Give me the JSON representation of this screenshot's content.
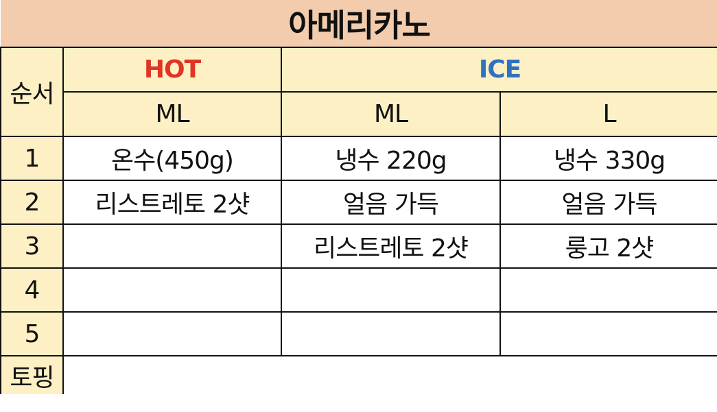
{
  "title": "아메리카노",
  "header": {
    "order_label": "순서",
    "hot_label": "HOT",
    "ice_label": "ICE",
    "hot_size": "ML",
    "ice_size_m": "ML",
    "ice_size_l": "L"
  },
  "rows": [
    {
      "step": "1",
      "hot_ml": "온수(450g)",
      "ice_ml": "냉수 220g",
      "ice_l": "냉수 330g"
    },
    {
      "step": "2",
      "hot_ml": "리스트레토 2샷",
      "ice_ml": "얼음 가득",
      "ice_l": "얼음 가득"
    },
    {
      "step": "3",
      "hot_ml": "",
      "ice_ml": "리스트레토 2샷",
      "ice_l": "룽고 2샷"
    },
    {
      "step": "4",
      "hot_ml": "",
      "ice_ml": "",
      "ice_l": ""
    },
    {
      "step": "5",
      "hot_ml": "",
      "ice_ml": "",
      "ice_l": ""
    }
  ],
  "topping_label": "토핑",
  "topping_value": "",
  "colors": {
    "title_bg": "#f2ccad",
    "label_bg": "#fdf0c4",
    "hot": "#e03524",
    "ice": "#2f72c4"
  }
}
